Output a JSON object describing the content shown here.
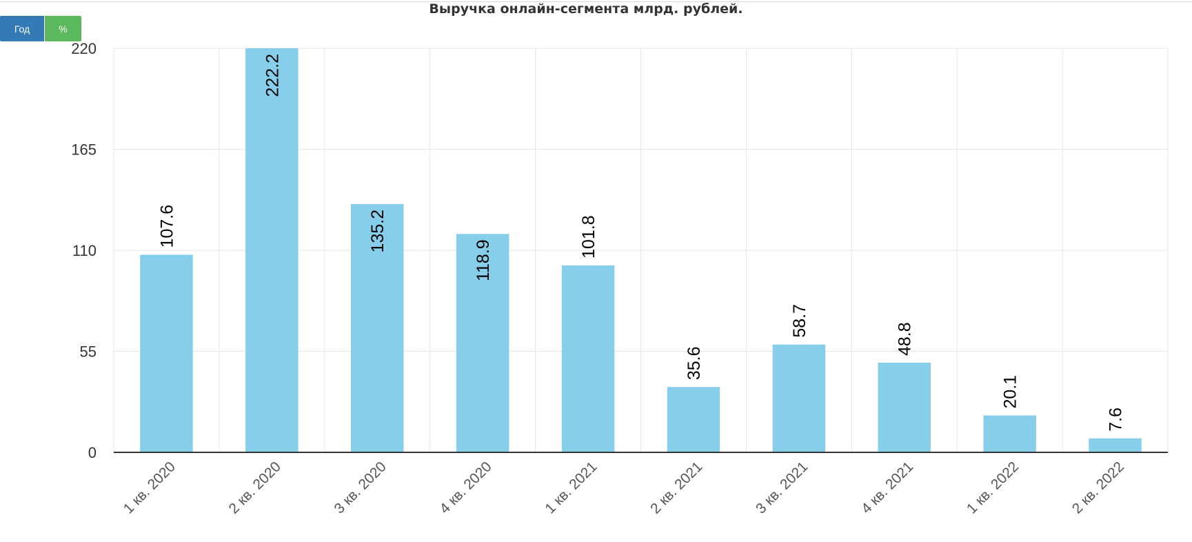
{
  "controls": {
    "year_label": "Год",
    "percent_label": "%"
  },
  "colors": {
    "bar": "#87CEEB",
    "grid": "#e6e6e6",
    "axis": "#333333",
    "year_button": "#337ab7",
    "percent_button": "#5cb85c"
  },
  "chart_data": {
    "type": "bar",
    "title": "Выручка онлайн-сегмента млрд. рублей.",
    "xlabel": "",
    "ylabel": "",
    "categories": [
      "1 кв. 2020",
      "2 кв. 2020",
      "3 кв. 2020",
      "4 кв. 2020",
      "1 кв. 2021",
      "2 кв. 2021",
      "3 кв. 2021",
      "4 кв. 2021",
      "1 кв. 2022",
      "2 кв. 2022"
    ],
    "values": [
      107.6,
      222.2,
      135.2,
      118.9,
      101.8,
      35.6,
      58.7,
      48.8,
      20.1,
      7.6
    ],
    "data_labels": [
      "107.6",
      "222.2",
      "135.2",
      "118.9",
      "101.8",
      "35.6",
      "58.7",
      "48.8",
      "20.1",
      "7.6"
    ],
    "ylim": [
      0,
      220
    ],
    "yticks": [
      0,
      55,
      110,
      165,
      220
    ],
    "grid": true,
    "legend": "none"
  }
}
